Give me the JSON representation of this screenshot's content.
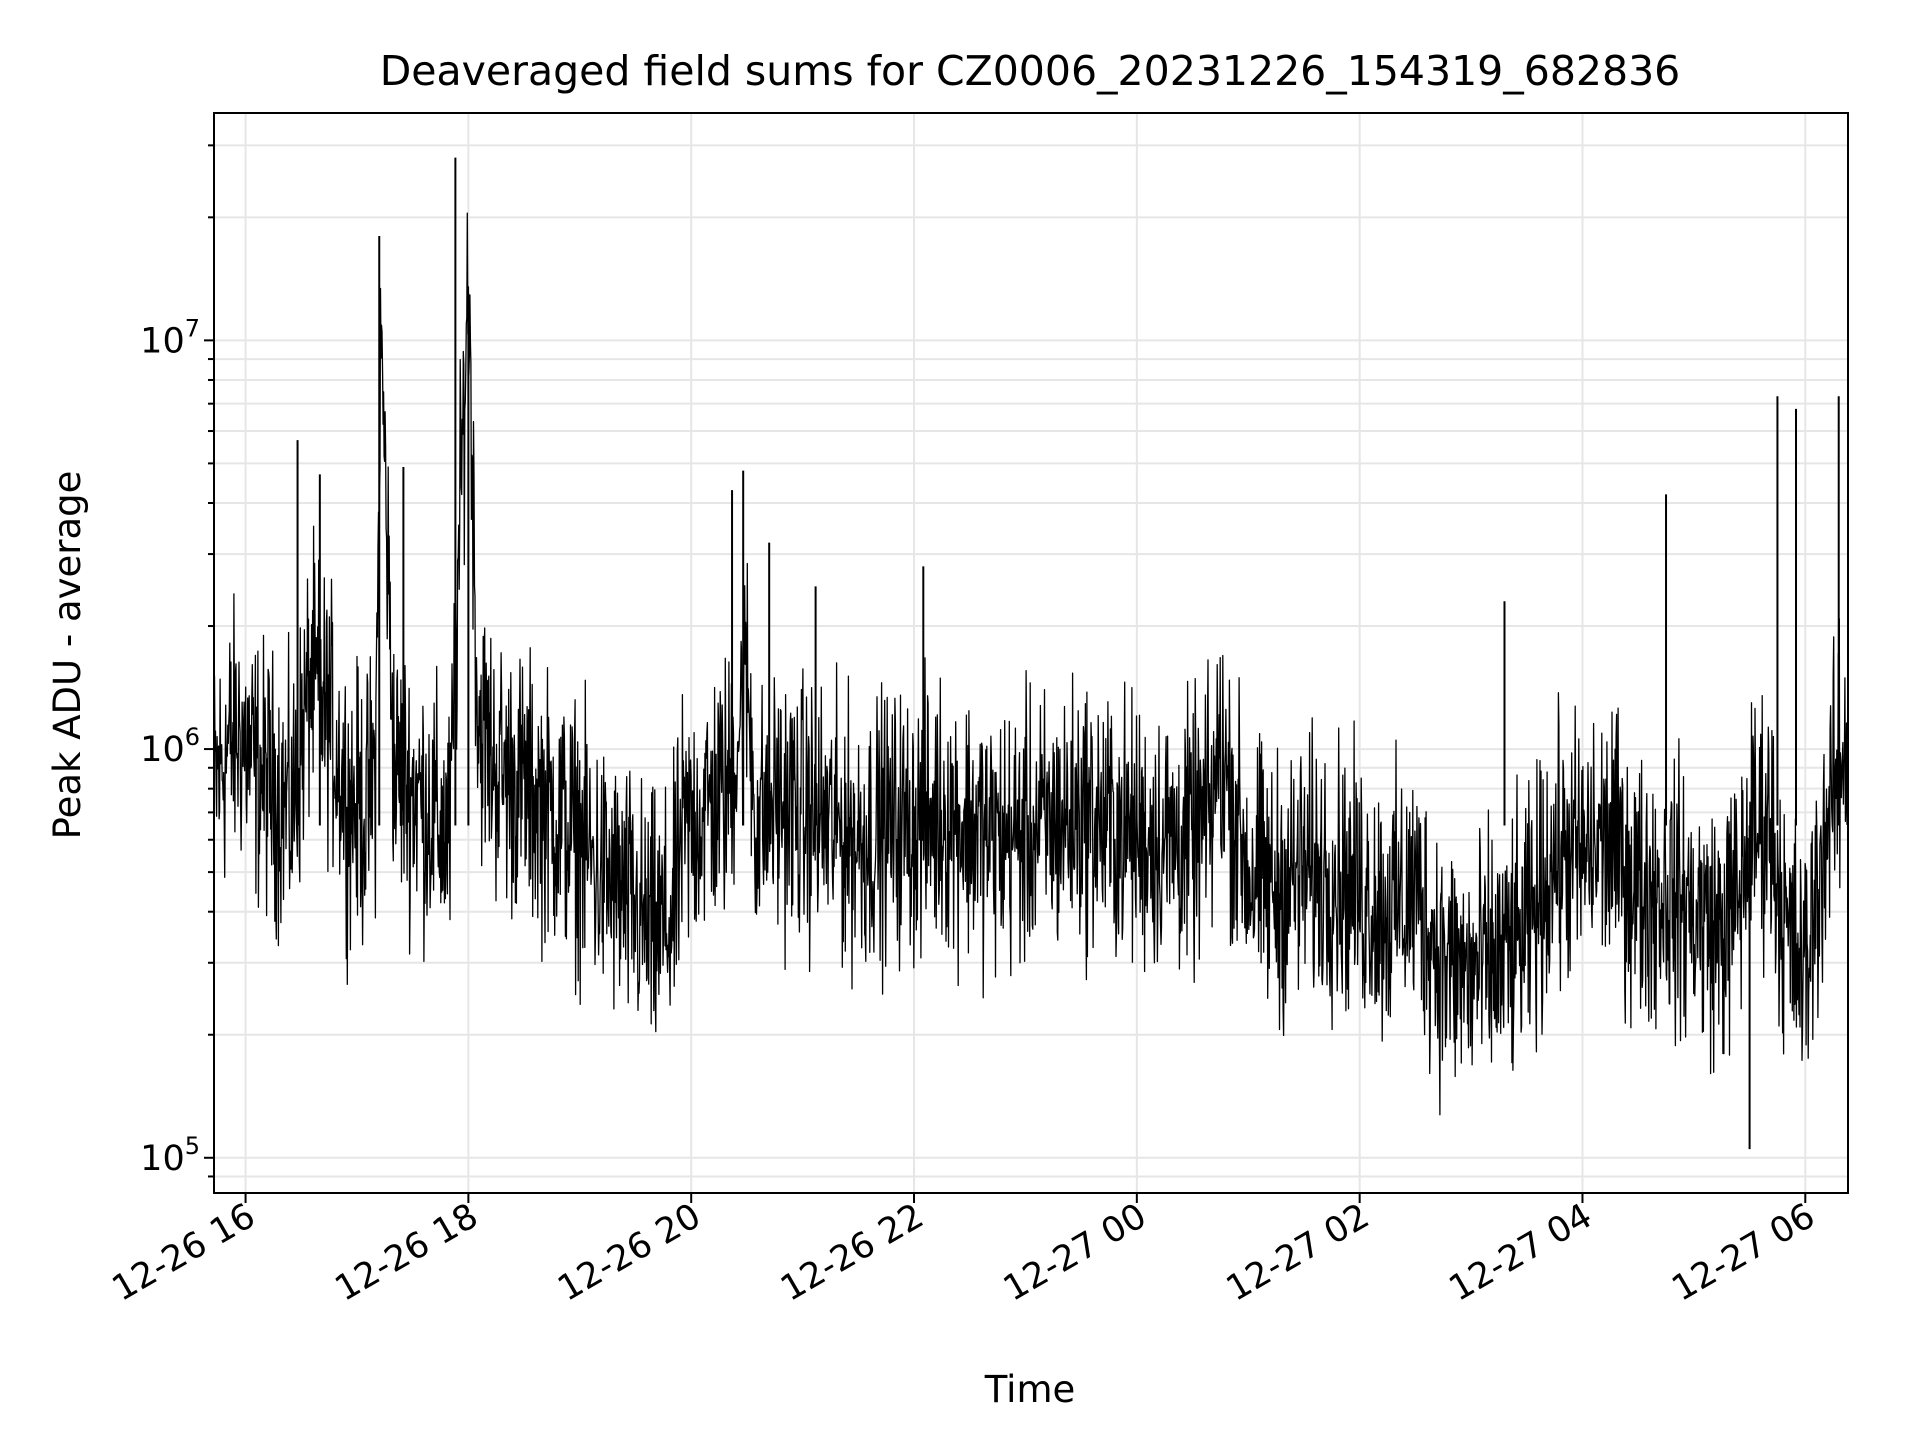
{
  "chart_data": {
    "type": "line",
    "title": "Deaveraged field sums for CZ0006_20231226_154319_682836",
    "xlabel": "Time",
    "ylabel": "Peak ADU - average",
    "yscale": "log",
    "xlim": [
      "2023-12-26 15:43",
      "2023-12-27 06:23"
    ],
    "ylim": [
      82000,
      36000000
    ],
    "grid": true,
    "line_color": "#000000",
    "grid_color": "#e6e6e6",
    "x_ticks": [
      {
        "value": "2023-12-26 16:00",
        "label": "12-26 16"
      },
      {
        "value": "2023-12-26 18:00",
        "label": "12-26 18"
      },
      {
        "value": "2023-12-26 20:00",
        "label": "12-26 20"
      },
      {
        "value": "2023-12-26 22:00",
        "label": "12-26 22"
      },
      {
        "value": "2023-12-27 00:00",
        "label": "12-27 00"
      },
      {
        "value": "2023-12-27 02:00",
        "label": "12-27 02"
      },
      {
        "value": "2023-12-27 04:00",
        "label": "12-27 04"
      },
      {
        "value": "2023-12-27 06:00",
        "label": "12-27 06"
      }
    ],
    "y_ticks": [
      {
        "value": 100000,
        "base": "10",
        "exp": "5"
      },
      {
        "value": 1000000,
        "base": "10",
        "exp": "6"
      },
      {
        "value": 10000000,
        "base": "10",
        "exp": "7"
      }
    ],
    "series": [
      {
        "x": [
          "2023-12-26 15:43",
          "2023-12-26 15:50",
          "2023-12-26 15:57",
          "2023-12-26 16:05",
          "2023-12-26 16:15",
          "2023-12-26 16:25",
          "2023-12-26 16:35",
          "2023-12-26 16:45",
          "2023-12-26 16:55",
          "2023-12-26 17:05",
          "2023-12-26 17:10",
          "2023-12-26 17:13",
          "2023-12-26 17:20",
          "2023-12-26 17:30",
          "2023-12-26 17:40",
          "2023-12-26 17:50",
          "2023-12-26 17:55",
          "2023-12-26 18:00",
          "2023-12-26 18:05",
          "2023-12-26 18:15",
          "2023-12-26 18:30",
          "2023-12-26 18:45",
          "2023-12-26 19:00",
          "2023-12-26 19:10",
          "2023-12-26 19:20",
          "2023-12-26 19:30",
          "2023-12-26 19:40",
          "2023-12-26 19:50",
          "2023-12-26 19:55",
          "2023-12-26 20:05",
          "2023-12-26 20:20",
          "2023-12-26 20:30",
          "2023-12-26 20:35",
          "2023-12-26 20:45",
          "2023-12-26 21:00",
          "2023-12-26 21:15",
          "2023-12-26 21:30",
          "2023-12-26 21:45",
          "2023-12-26 22:00",
          "2023-12-26 22:15",
          "2023-12-26 22:30",
          "2023-12-26 22:45",
          "2023-12-26 23:00",
          "2023-12-26 23:15",
          "2023-12-26 23:30",
          "2023-12-26 23:45",
          "2023-12-27 00:00",
          "2023-12-27 00:15",
          "2023-12-27 00:30",
          "2023-12-27 00:40",
          "2023-12-27 00:45",
          "2023-12-27 01:00",
          "2023-12-27 01:15",
          "2023-12-27 01:30",
          "2023-12-27 01:45",
          "2023-12-27 02:00",
          "2023-12-27 02:15",
          "2023-12-27 02:30",
          "2023-12-27 02:45",
          "2023-12-27 03:00",
          "2023-12-27 03:15",
          "2023-12-27 03:30",
          "2023-12-27 03:45",
          "2023-12-27 04:00",
          "2023-12-27 04:15",
          "2023-12-27 04:30",
          "2023-12-27 04:45",
          "2023-12-27 05:00",
          "2023-12-27 05:15",
          "2023-12-27 05:25",
          "2023-12-27 05:30",
          "2023-12-27 05:40",
          "2023-12-27 05:50",
          "2023-12-27 06:00",
          "2023-12-27 06:10",
          "2023-12-27 06:23"
        ],
        "y": [
          800000,
          1000000,
          1100000,
          900000,
          800000,
          700000,
          1500000,
          1200000,
          750000,
          700000,
          900000,
          10000000,
          900000,
          800000,
          700000,
          600000,
          3000000,
          15000000,
          1200000,
          900000,
          800000,
          700000,
          600000,
          500000,
          450000,
          400000,
          350000,
          380000,
          600000,
          700000,
          800000,
          1500000,
          650000,
          750000,
          700000,
          650000,
          600000,
          650000,
          650000,
          700000,
          650000,
          600000,
          620000,
          650000,
          700000,
          650000,
          620000,
          600000,
          600000,
          700000,
          1000000,
          500000,
          450000,
          500000,
          500000,
          450000,
          400000,
          450000,
          300000,
          280000,
          300000,
          350000,
          550000,
          550000,
          600000,
          450000,
          450000,
          400000,
          350000,
          450000,
          600000,
          700000,
          350000,
          280000,
          600000,
          1100000
        ]
      }
    ],
    "spikes": [
      {
        "x": "2023-12-26 16:28",
        "y": 5700000
      },
      {
        "x": "2023-12-26 16:40",
        "y": 4700000
      },
      {
        "x": "2023-12-26 17:12",
        "y": 18000000
      },
      {
        "x": "2023-12-26 17:25",
        "y": 4900000
      },
      {
        "x": "2023-12-26 17:53",
        "y": 28000000
      },
      {
        "x": "2023-12-26 18:00",
        "y": 13000000
      },
      {
        "x": "2023-12-26 20:22",
        "y": 4300000
      },
      {
        "x": "2023-12-26 20:28",
        "y": 4800000
      },
      {
        "x": "2023-12-26 20:42",
        "y": 3200000
      },
      {
        "x": "2023-12-26 21:07",
        "y": 2500000
      },
      {
        "x": "2023-12-26 22:05",
        "y": 2800000
      },
      {
        "x": "2023-12-27 03:18",
        "y": 2300000
      },
      {
        "x": "2023-12-27 04:45",
        "y": 4200000
      },
      {
        "x": "2023-12-27 05:45",
        "y": 7300000
      },
      {
        "x": "2023-12-27 05:55",
        "y": 6800000
      },
      {
        "x": "2023-12-27 06:18",
        "y": 7300000
      },
      {
        "x": "2023-12-27 05:30",
        "y": 105000
      }
    ]
  }
}
